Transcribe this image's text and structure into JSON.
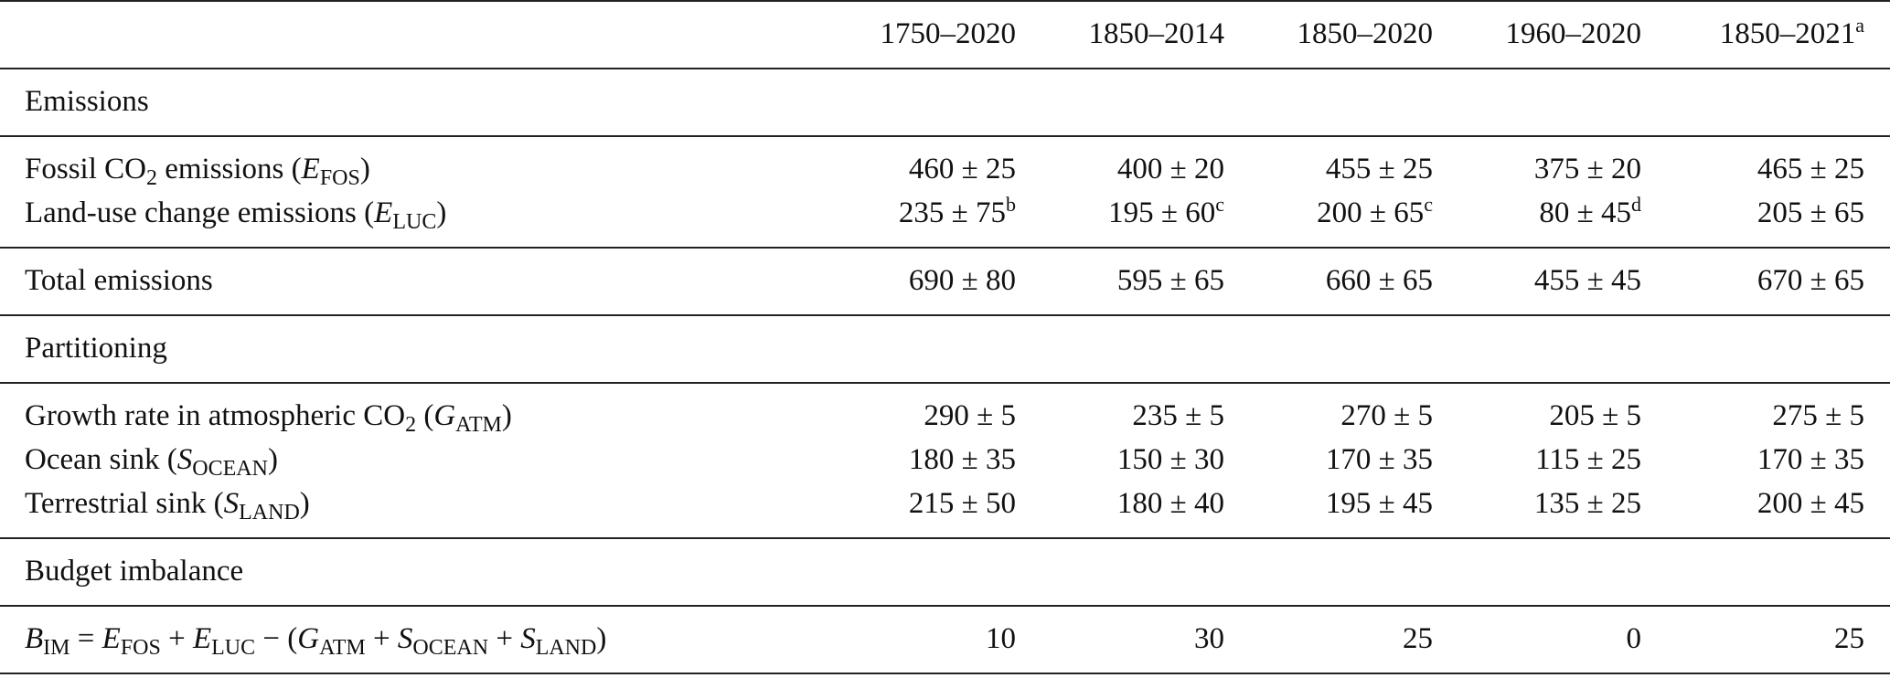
{
  "table": {
    "header": [
      {
        "text": "1750–2020"
      },
      {
        "text": "1850–2014"
      },
      {
        "text": "1850–2020"
      },
      {
        "text": "1960–2020"
      },
      {
        "text": "1850–2021",
        "sup": "a"
      }
    ],
    "blocks": [
      {
        "title": "Emissions"
      },
      {
        "rows": [
          {
            "label": [
              {
                "text": "Fossil CO"
              },
              {
                "sub": "2"
              },
              {
                "text": " emissions ("
              },
              {
                "italic": "E"
              },
              {
                "sub": "FOS"
              },
              {
                "text": ")"
              }
            ],
            "cells": [
              "460 ± 25",
              "400 ± 20",
              "455 ± 25",
              "375 ± 20",
              "465 ± 25"
            ]
          },
          {
            "label": [
              {
                "text": "Land-use change emissions ("
              },
              {
                "italic": "E"
              },
              {
                "sub": "LUC"
              },
              {
                "text": ")"
              }
            ],
            "cells": [
              {
                "text": "235 ± 75",
                "sup": "b"
              },
              {
                "text": "195 ± 60",
                "sup": "c"
              },
              {
                "text": "200 ± 65",
                "sup": "c"
              },
              {
                "text": "80 ± 45",
                "sup": "d"
              },
              "205 ± 65"
            ]
          }
        ]
      },
      {
        "rows": [
          {
            "label": [
              {
                "text": "Total emissions"
              }
            ],
            "cells": [
              "690 ± 80",
              "595 ± 65",
              "660 ± 65",
              "455 ± 45",
              "670 ± 65"
            ]
          }
        ]
      },
      {
        "title": "Partitioning"
      },
      {
        "rows": [
          {
            "label": [
              {
                "text": "Growth rate in atmospheric CO"
              },
              {
                "sub": "2"
              },
              {
                "text": " ("
              },
              {
                "italic": "G"
              },
              {
                "sub": "ATM"
              },
              {
                "text": ")"
              }
            ],
            "cells": [
              "290 ± 5",
              "235 ± 5",
              "270 ± 5",
              "205 ± 5",
              "275 ± 5"
            ]
          },
          {
            "label": [
              {
                "text": "Ocean sink ("
              },
              {
                "italic": "S"
              },
              {
                "sub": "OCEAN"
              },
              {
                "text": ")"
              }
            ],
            "cells": [
              "180 ± 35",
              "150 ± 30",
              "170 ± 35",
              "115 ± 25",
              "170 ± 35"
            ]
          },
          {
            "label": [
              {
                "text": "Terrestrial sink ("
              },
              {
                "italic": "S"
              },
              {
                "sub": "LAND"
              },
              {
                "text": ")"
              }
            ],
            "cells": [
              "215 ± 50",
              "180 ± 40",
              "195 ± 45",
              "135 ± 25",
              "200 ± 45"
            ]
          }
        ]
      },
      {
        "title": "Budget imbalance"
      },
      {
        "rows": [
          {
            "label": [
              {
                "italic": "B"
              },
              {
                "sub": "IM"
              },
              {
                "text": " = "
              },
              {
                "italic": "E"
              },
              {
                "sub": "FOS"
              },
              {
                "text": " + "
              },
              {
                "italic": "E"
              },
              {
                "sub": "LUC"
              },
              {
                "text": " − ("
              },
              {
                "italic": "G"
              },
              {
                "sub": "ATM"
              },
              {
                "text": " + "
              },
              {
                "italic": "S"
              },
              {
                "sub": "OCEAN"
              },
              {
                "text": " + "
              },
              {
                "italic": "S"
              },
              {
                "sub": "LAND"
              },
              {
                "text": ")"
              }
            ],
            "cells": [
              10,
              30,
              25,
              0,
              25
            ]
          }
        ]
      }
    ]
  }
}
